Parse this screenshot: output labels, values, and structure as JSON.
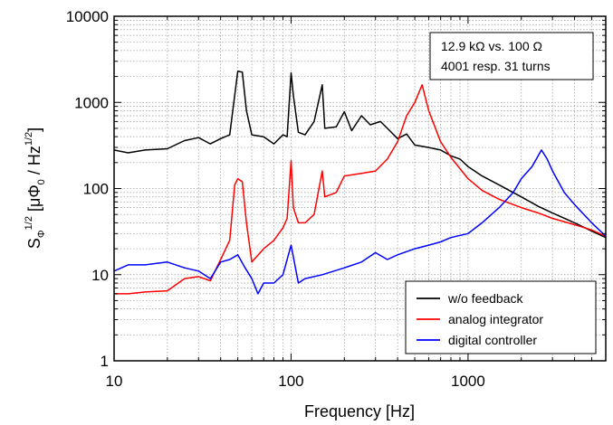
{
  "chart_data": {
    "type": "line",
    "x_scale": "log",
    "y_scale": "log",
    "xlim": [
      10,
      6000
    ],
    "ylim": [
      1,
      10000
    ],
    "xlabel": "Frequency [Hz]",
    "ylabel": {
      "base": "S",
      "sub": "Φ",
      "sup": "1/2",
      "unit_open": " [μΦ",
      "unit_sub": "0",
      "unit_mid": " / Hz",
      "unit_sup": "1/2",
      "unit_close": "]"
    },
    "x_ticks": [
      {
        "value": 10,
        "label": "10"
      },
      {
        "value": 100,
        "label": "100"
      },
      {
        "value": 1000,
        "label": "1000"
      }
    ],
    "y_ticks": [
      {
        "value": 1,
        "label": "1"
      },
      {
        "value": 10,
        "label": "10"
      },
      {
        "value": 100,
        "label": "100"
      },
      {
        "value": 1000,
        "label": "1000"
      },
      {
        "value": 10000,
        "label": "10000"
      }
    ],
    "grid": true,
    "annotation": {
      "line1": "12.9 kΩ vs. 100 Ω",
      "line2": "4001 resp. 31 turns",
      "placement": "top-right"
    },
    "legend_placement": "bottom-right",
    "series": [
      {
        "name": "w/o feedback",
        "color": "#000000",
        "points": [
          [
            10,
            280
          ],
          [
            12,
            260
          ],
          [
            15,
            280
          ],
          [
            20,
            290
          ],
          [
            25,
            360
          ],
          [
            30,
            390
          ],
          [
            35,
            330
          ],
          [
            40,
            380
          ],
          [
            45,
            420
          ],
          [
            48,
            1200
          ],
          [
            50,
            2300
          ],
          [
            53,
            2250
          ],
          [
            56,
            800
          ],
          [
            60,
            420
          ],
          [
            70,
            400
          ],
          [
            80,
            330
          ],
          [
            90,
            420
          ],
          [
            95,
            400
          ],
          [
            100,
            2200
          ],
          [
            103,
            1200
          ],
          [
            110,
            450
          ],
          [
            120,
            420
          ],
          [
            135,
            600
          ],
          [
            150,
            1600
          ],
          [
            155,
            500
          ],
          [
            180,
            520
          ],
          [
            200,
            780
          ],
          [
            220,
            470
          ],
          [
            250,
            700
          ],
          [
            280,
            550
          ],
          [
            320,
            600
          ],
          [
            350,
            500
          ],
          [
            400,
            380
          ],
          [
            450,
            430
          ],
          [
            500,
            320
          ],
          [
            600,
            300
          ],
          [
            700,
            280
          ],
          [
            800,
            240
          ],
          [
            900,
            220
          ],
          [
            1000,
            180
          ],
          [
            1200,
            140
          ],
          [
            1500,
            110
          ],
          [
            2000,
            80
          ],
          [
            2500,
            62
          ],
          [
            3000,
            52
          ],
          [
            4000,
            40
          ],
          [
            5000,
            32
          ],
          [
            6000,
            27
          ]
        ]
      },
      {
        "name": "analog integrator",
        "color": "#ff0000",
        "points": [
          [
            10,
            6
          ],
          [
            12,
            6
          ],
          [
            15,
            6.3
          ],
          [
            20,
            6.5
          ],
          [
            25,
            9
          ],
          [
            30,
            9.5
          ],
          [
            35,
            8.5
          ],
          [
            40,
            15
          ],
          [
            45,
            25
          ],
          [
            48,
            110
          ],
          [
            50,
            130
          ],
          [
            53,
            120
          ],
          [
            56,
            40
          ],
          [
            60,
            14
          ],
          [
            70,
            20
          ],
          [
            80,
            25
          ],
          [
            90,
            35
          ],
          [
            95,
            45
          ],
          [
            100,
            210
          ],
          [
            103,
            60
          ],
          [
            110,
            40
          ],
          [
            120,
            40
          ],
          [
            135,
            50
          ],
          [
            150,
            160
          ],
          [
            155,
            80
          ],
          [
            180,
            90
          ],
          [
            200,
            140
          ],
          [
            250,
            150
          ],
          [
            300,
            160
          ],
          [
            350,
            220
          ],
          [
            400,
            350
          ],
          [
            450,
            700
          ],
          [
            500,
            1000
          ],
          [
            550,
            1600
          ],
          [
            600,
            800
          ],
          [
            700,
            350
          ],
          [
            800,
            230
          ],
          [
            900,
            170
          ],
          [
            1000,
            130
          ],
          [
            1200,
            95
          ],
          [
            1500,
            75
          ],
          [
            2000,
            60
          ],
          [
            2500,
            52
          ],
          [
            3000,
            45
          ],
          [
            4000,
            38
          ],
          [
            5000,
            33
          ],
          [
            6000,
            28
          ]
        ]
      },
      {
        "name": "digital controller",
        "color": "#0000ff",
        "points": [
          [
            10,
            11
          ],
          [
            12,
            13
          ],
          [
            15,
            13
          ],
          [
            20,
            14
          ],
          [
            25,
            12
          ],
          [
            30,
            11
          ],
          [
            35,
            9
          ],
          [
            40,
            14
          ],
          [
            45,
            15
          ],
          [
            50,
            17
          ],
          [
            55,
            12
          ],
          [
            60,
            9
          ],
          [
            65,
            6
          ],
          [
            70,
            8
          ],
          [
            80,
            8
          ],
          [
            90,
            10
          ],
          [
            100,
            22
          ],
          [
            110,
            8
          ],
          [
            120,
            9
          ],
          [
            150,
            10
          ],
          [
            200,
            12
          ],
          [
            250,
            14
          ],
          [
            300,
            18
          ],
          [
            350,
            15
          ],
          [
            400,
            17
          ],
          [
            500,
            20
          ],
          [
            600,
            22
          ],
          [
            700,
            24
          ],
          [
            800,
            27
          ],
          [
            1000,
            30
          ],
          [
            1200,
            40
          ],
          [
            1500,
            60
          ],
          [
            1800,
            90
          ],
          [
            2000,
            130
          ],
          [
            2300,
            180
          ],
          [
            2600,
            280
          ],
          [
            2800,
            220
          ],
          [
            3000,
            160
          ],
          [
            3500,
            90
          ],
          [
            4000,
            65
          ],
          [
            5000,
            40
          ],
          [
            6000,
            28
          ]
        ]
      }
    ]
  }
}
